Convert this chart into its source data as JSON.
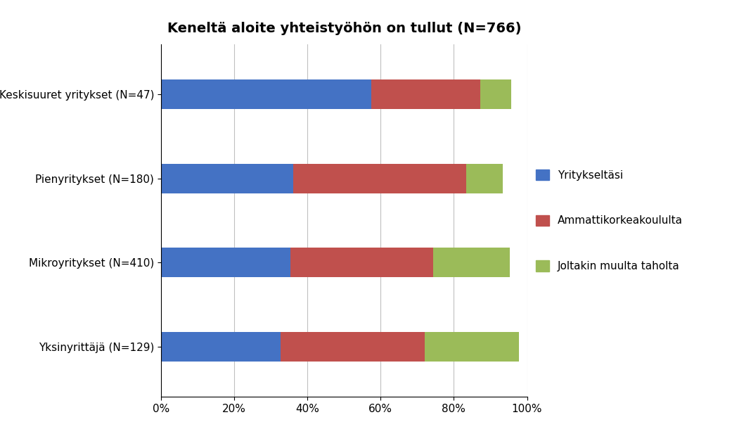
{
  "title": "Keneltä aloite yhteistyöhön on tullut (N=766)",
  "categories": [
    "Keskisuuret yritykset (N=47)",
    "Pienyritykset (N=180)",
    "Mikroyritykset (N=410)",
    "Yksinyrittäjä (N=129)"
  ],
  "series": {
    "Yritykseltäsi": [
      0.574,
      0.361,
      0.354,
      0.326
    ],
    "Ammattikorkeakoululta": [
      0.298,
      0.472,
      0.39,
      0.395
    ],
    "Joltakin muulta taholta": [
      0.085,
      0.1,
      0.209,
      0.256
    ]
  },
  "colors": {
    "Yritykseltäsi": "#4472C4",
    "Ammattikorkeakoululta": "#C0504D",
    "Joltakin muulta taholta": "#9BBB59"
  },
  "legend_labels": [
    "Yritykseltäsi",
    "Ammattikorkeakoululta",
    "Joltakin muulta taholta"
  ],
  "xlim": [
    0,
    1.0
  ],
  "xticks": [
    0,
    0.2,
    0.4,
    0.6,
    0.8,
    1.0
  ],
  "xticklabels": [
    "0%",
    "20%",
    "40%",
    "60%",
    "80%",
    "100%"
  ],
  "background_color": "#FFFFFF",
  "title_fontsize": 14,
  "tick_fontsize": 11,
  "label_fontsize": 11,
  "legend_fontsize": 11,
  "bar_height": 0.35
}
